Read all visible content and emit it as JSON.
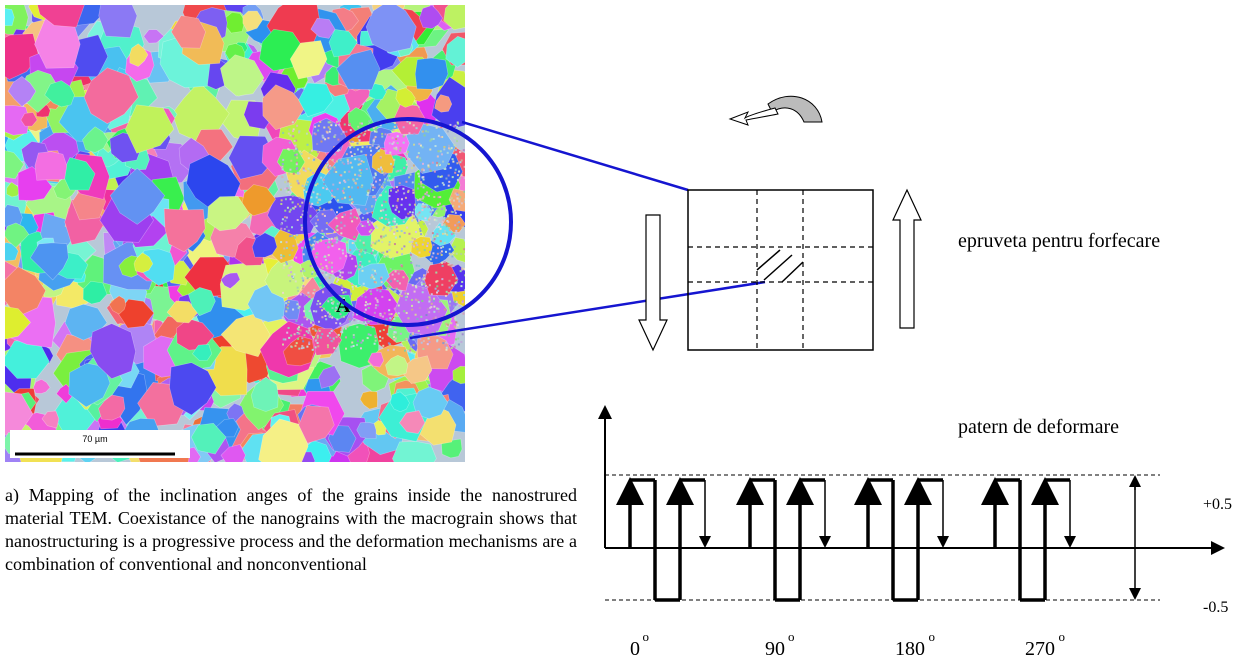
{
  "figure": {
    "map_label": "A",
    "scale_bar": "70 µm",
    "specimen_label": "epruveta pentru forfecare",
    "pattern_label": "patern de deformare",
    "upper_level": "+0.5",
    "lower_level": "-0.5",
    "angles": [
      "0",
      "90",
      "180",
      "270"
    ],
    "degree_mark": "o",
    "caption": "a) Mapping of the inclination anges of the grains inside the nanostrured material TEM. Coexistance of the nanograins with the macrograin shows that nanostructuring is a progressive process and the deformation mechanisms are a combination of conventional and nonconventional"
  }
}
